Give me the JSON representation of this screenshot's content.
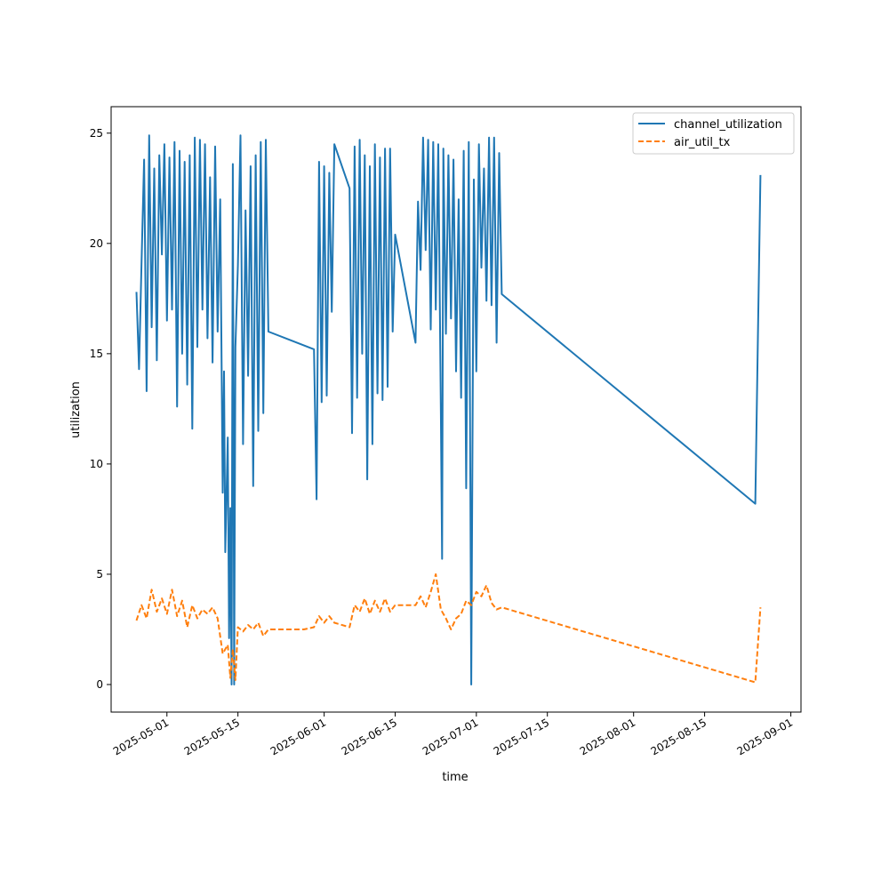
{
  "chart_data": {
    "type": "line",
    "title": "",
    "xlabel": "time",
    "ylabel": "utilization",
    "x_is_date": true,
    "xlim": [
      "2025-04-20",
      "2025-09-03"
    ],
    "ylim": [
      -1.25,
      26.2
    ],
    "y_ticks": [
      0,
      5,
      10,
      15,
      20,
      25
    ],
    "x_ticks": [
      "2025-05-01",
      "2025-05-15",
      "2025-06-01",
      "2025-06-15",
      "2025-07-01",
      "2025-07-15",
      "2025-08-01",
      "2025-08-15",
      "2025-09-01"
    ],
    "grid": false,
    "legend_position": "top-right",
    "series": [
      {
        "name": "channel_utilization",
        "color": "#1f77b4",
        "dash": "solid",
        "points": [
          [
            "2025-04-25",
            17.8
          ],
          [
            "2025-04-25T12:00",
            14.3
          ],
          [
            "2025-04-26",
            19.1
          ],
          [
            "2025-04-26T12:00",
            23.8
          ],
          [
            "2025-04-27",
            13.3
          ],
          [
            "2025-04-27T12:00",
            24.9
          ],
          [
            "2025-04-28",
            16.2
          ],
          [
            "2025-04-28T12:00",
            23.4
          ],
          [
            "2025-04-29",
            14.7
          ],
          [
            "2025-04-29T12:00",
            24.0
          ],
          [
            "2025-04-30",
            19.5
          ],
          [
            "2025-04-30T12:00",
            24.5
          ],
          [
            "2025-05-01",
            16.5
          ],
          [
            "2025-05-01T12:00",
            23.9
          ],
          [
            "2025-05-02",
            17.0
          ],
          [
            "2025-05-02T12:00",
            24.6
          ],
          [
            "2025-05-03",
            12.6
          ],
          [
            "2025-05-03T12:00",
            24.2
          ],
          [
            "2025-05-04",
            15.0
          ],
          [
            "2025-05-04T12:00",
            23.7
          ],
          [
            "2025-05-05",
            13.6
          ],
          [
            "2025-05-05T12:00",
            24.0
          ],
          [
            "2025-05-06",
            11.6
          ],
          [
            "2025-05-06T12:00",
            24.8
          ],
          [
            "2025-05-07",
            15.3
          ],
          [
            "2025-05-07T12:00",
            24.7
          ],
          [
            "2025-05-08",
            17.0
          ],
          [
            "2025-05-08T12:00",
            24.5
          ],
          [
            "2025-05-09",
            15.7
          ],
          [
            "2025-05-09T12:00",
            23.0
          ],
          [
            "2025-05-10",
            14.6
          ],
          [
            "2025-05-10T12:00",
            24.4
          ],
          [
            "2025-05-11",
            16.0
          ],
          [
            "2025-05-11T12:00",
            22.0
          ],
          [
            "2025-05-12",
            8.7
          ],
          [
            "2025-05-12T06:00",
            14.2
          ],
          [
            "2025-05-12T12:00",
            6.0
          ],
          [
            "2025-05-13",
            11.2
          ],
          [
            "2025-05-13T06:00",
            2.1
          ],
          [
            "2025-05-13T12:00",
            8.0
          ],
          [
            "2025-05-13T18:00",
            0.0
          ],
          [
            "2025-05-14",
            23.6
          ],
          [
            "2025-05-14T06:00",
            0.0
          ],
          [
            "2025-05-14T12:00",
            15.3
          ],
          [
            "2025-05-15",
            19.0
          ],
          [
            "2025-05-15T12:00",
            24.9
          ],
          [
            "2025-05-16",
            10.9
          ],
          [
            "2025-05-16T12:00",
            21.5
          ],
          [
            "2025-05-17",
            14.0
          ],
          [
            "2025-05-17T12:00",
            23.5
          ],
          [
            "2025-05-18",
            9.0
          ],
          [
            "2025-05-18T12:00",
            24.0
          ],
          [
            "2025-05-19",
            11.5
          ],
          [
            "2025-05-19T12:00",
            24.6
          ],
          [
            "2025-05-20",
            12.3
          ],
          [
            "2025-05-20T12:00",
            24.7
          ],
          [
            "2025-05-21",
            16.0
          ],
          [
            "2025-05-30",
            15.2
          ],
          [
            "2025-05-30T12:00",
            8.4
          ],
          [
            "2025-05-31",
            23.7
          ],
          [
            "2025-05-31T12:00",
            12.8
          ],
          [
            "2025-06-01",
            23.5
          ],
          [
            "2025-06-01T12:00",
            13.1
          ],
          [
            "2025-06-02",
            23.2
          ],
          [
            "2025-06-02T12:00",
            16.9
          ],
          [
            "2025-06-03",
            24.5
          ],
          [
            "2025-06-06",
            22.5
          ],
          [
            "2025-06-06T12:00",
            11.4
          ],
          [
            "2025-06-07",
            24.4
          ],
          [
            "2025-06-07T12:00",
            13.0
          ],
          [
            "2025-06-08",
            24.7
          ],
          [
            "2025-06-08T12:00",
            15.0
          ],
          [
            "2025-06-09",
            24.0
          ],
          [
            "2025-06-09T12:00",
            9.3
          ],
          [
            "2025-06-10",
            23.5
          ],
          [
            "2025-06-10T12:00",
            10.9
          ],
          [
            "2025-06-11",
            24.5
          ],
          [
            "2025-06-11T12:00",
            13.2
          ],
          [
            "2025-06-12",
            23.9
          ],
          [
            "2025-06-12T12:00",
            12.9
          ],
          [
            "2025-06-13",
            24.3
          ],
          [
            "2025-06-13T12:00",
            13.5
          ],
          [
            "2025-06-14",
            24.3
          ],
          [
            "2025-06-14T12:00",
            16.0
          ],
          [
            "2025-06-15",
            20.4
          ],
          [
            "2025-06-19",
            15.5
          ],
          [
            "2025-06-19T12:00",
            21.9
          ],
          [
            "2025-06-20",
            18.8
          ],
          [
            "2025-06-20T12:00",
            24.8
          ],
          [
            "2025-06-21",
            19.7
          ],
          [
            "2025-06-21T12:00",
            24.7
          ],
          [
            "2025-06-22",
            16.1
          ],
          [
            "2025-06-22T12:00",
            24.6
          ],
          [
            "2025-06-23",
            17.0
          ],
          [
            "2025-06-23T12:00",
            24.5
          ],
          [
            "2025-06-24",
            12.4
          ],
          [
            "2025-06-24T06:00",
            5.7
          ],
          [
            "2025-06-24T12:00",
            24.3
          ],
          [
            "2025-06-25",
            15.9
          ],
          [
            "2025-06-25T12:00",
            24.0
          ],
          [
            "2025-06-26",
            16.6
          ],
          [
            "2025-06-26T12:00",
            23.8
          ],
          [
            "2025-06-27",
            14.2
          ],
          [
            "2025-06-27T12:00",
            22.0
          ],
          [
            "2025-06-28",
            13.0
          ],
          [
            "2025-06-28T12:00",
            24.2
          ],
          [
            "2025-06-29",
            8.9
          ],
          [
            "2025-06-29T12:00",
            24.6
          ],
          [
            "2025-06-30",
            0.0
          ],
          [
            "2025-06-30T12:00",
            22.9
          ],
          [
            "2025-07-01",
            14.2
          ],
          [
            "2025-07-01T12:00",
            24.5
          ],
          [
            "2025-07-02",
            18.9
          ],
          [
            "2025-07-02T12:00",
            23.4
          ],
          [
            "2025-07-03",
            17.4
          ],
          [
            "2025-07-03T12:00",
            24.8
          ],
          [
            "2025-07-04",
            17.2
          ],
          [
            "2025-07-04T12:00",
            24.8
          ],
          [
            "2025-07-05",
            15.5
          ],
          [
            "2025-07-05T12:00",
            24.1
          ],
          [
            "2025-07-06",
            17.7
          ],
          [
            "2025-08-25",
            8.2
          ],
          [
            "2025-08-26",
            23.1
          ]
        ]
      },
      {
        "name": "air_util_tx",
        "color": "#ff7f0e",
        "dash": "dashed",
        "points": [
          [
            "2025-04-25",
            2.9
          ],
          [
            "2025-04-26",
            3.6
          ],
          [
            "2025-04-27",
            3.0
          ],
          [
            "2025-04-28",
            4.3
          ],
          [
            "2025-04-29",
            3.3
          ],
          [
            "2025-04-30",
            3.9
          ],
          [
            "2025-05-01",
            3.2
          ],
          [
            "2025-05-02",
            4.3
          ],
          [
            "2025-05-03",
            3.1
          ],
          [
            "2025-05-04",
            3.8
          ],
          [
            "2025-05-05",
            2.6
          ],
          [
            "2025-05-06",
            3.6
          ],
          [
            "2025-05-07",
            3.0
          ],
          [
            "2025-05-08",
            3.4
          ],
          [
            "2025-05-09",
            3.2
          ],
          [
            "2025-05-10",
            3.5
          ],
          [
            "2025-05-11",
            3.0
          ],
          [
            "2025-05-12",
            1.4
          ],
          [
            "2025-05-13",
            1.8
          ],
          [
            "2025-05-13T12:00",
            0.3
          ],
          [
            "2025-05-14",
            1.6
          ],
          [
            "2025-05-14T12:00",
            0.2
          ],
          [
            "2025-05-15",
            2.6
          ],
          [
            "2025-05-16",
            2.4
          ],
          [
            "2025-05-17",
            2.7
          ],
          [
            "2025-05-18",
            2.5
          ],
          [
            "2025-05-19",
            2.8
          ],
          [
            "2025-05-20",
            2.2
          ],
          [
            "2025-05-21",
            2.5
          ],
          [
            "2025-05-28",
            2.5
          ],
          [
            "2025-05-30",
            2.6
          ],
          [
            "2025-05-31",
            3.1
          ],
          [
            "2025-06-01",
            2.8
          ],
          [
            "2025-06-02",
            3.1
          ],
          [
            "2025-06-03",
            2.8
          ],
          [
            "2025-06-06",
            2.6
          ],
          [
            "2025-06-07",
            3.6
          ],
          [
            "2025-06-08",
            3.3
          ],
          [
            "2025-06-09",
            3.9
          ],
          [
            "2025-06-10",
            3.2
          ],
          [
            "2025-06-11",
            3.8
          ],
          [
            "2025-06-12",
            3.3
          ],
          [
            "2025-06-13",
            3.9
          ],
          [
            "2025-06-14",
            3.3
          ],
          [
            "2025-06-15",
            3.6
          ],
          [
            "2025-06-19",
            3.6
          ],
          [
            "2025-06-20",
            4.0
          ],
          [
            "2025-06-21",
            3.5
          ],
          [
            "2025-06-22",
            4.2
          ],
          [
            "2025-06-23",
            5.0
          ],
          [
            "2025-06-24",
            3.4
          ],
          [
            "2025-06-25",
            3.0
          ],
          [
            "2025-06-26",
            2.5
          ],
          [
            "2025-06-27",
            3.0
          ],
          [
            "2025-06-28",
            3.2
          ],
          [
            "2025-06-29",
            3.8
          ],
          [
            "2025-06-30",
            3.6
          ],
          [
            "2025-07-01",
            4.2
          ],
          [
            "2025-07-02",
            4.0
          ],
          [
            "2025-07-03",
            4.5
          ],
          [
            "2025-07-04",
            3.7
          ],
          [
            "2025-07-05",
            3.4
          ],
          [
            "2025-07-06",
            3.5
          ],
          [
            "2025-08-25",
            0.1
          ],
          [
            "2025-08-26",
            3.5
          ]
        ]
      }
    ]
  }
}
